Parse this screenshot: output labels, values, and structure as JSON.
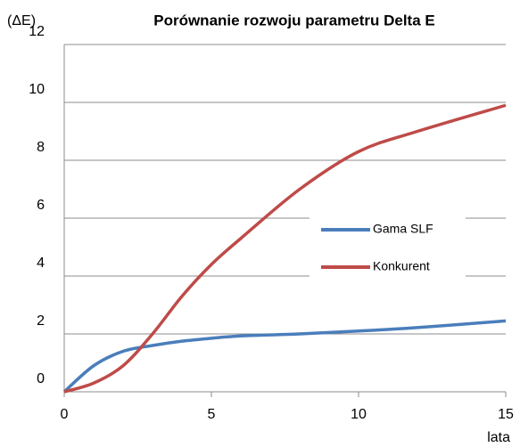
{
  "chart_data": {
    "type": "line",
    "title": "Porównanie rozwoju parametru Delta E",
    "y_label": "(ΔE)",
    "x_label": "lata",
    "x": [
      0,
      1,
      2,
      3,
      4,
      5,
      6,
      8,
      10,
      12,
      15
    ],
    "series": [
      {
        "name": "Gama SLF",
        "color": "#4a7ebb",
        "values": [
          0,
          0.9,
          1.4,
          1.6,
          1.75,
          1.85,
          1.93,
          2.0,
          2.1,
          2.22,
          2.45
        ]
      },
      {
        "name": "Konkurent",
        "color": "#be4b48",
        "values": [
          0,
          0.3,
          0.9,
          2.0,
          3.3,
          4.4,
          5.3,
          7.0,
          8.3,
          9.0,
          9.9
        ]
      }
    ],
    "xlim": [
      0,
      15
    ],
    "xticks": [
      0,
      5,
      10,
      15
    ],
    "ylim": [
      0,
      12
    ],
    "yticks": [
      0,
      2,
      4,
      6,
      8,
      10,
      12
    ],
    "grid": true,
    "legend": "right"
  }
}
